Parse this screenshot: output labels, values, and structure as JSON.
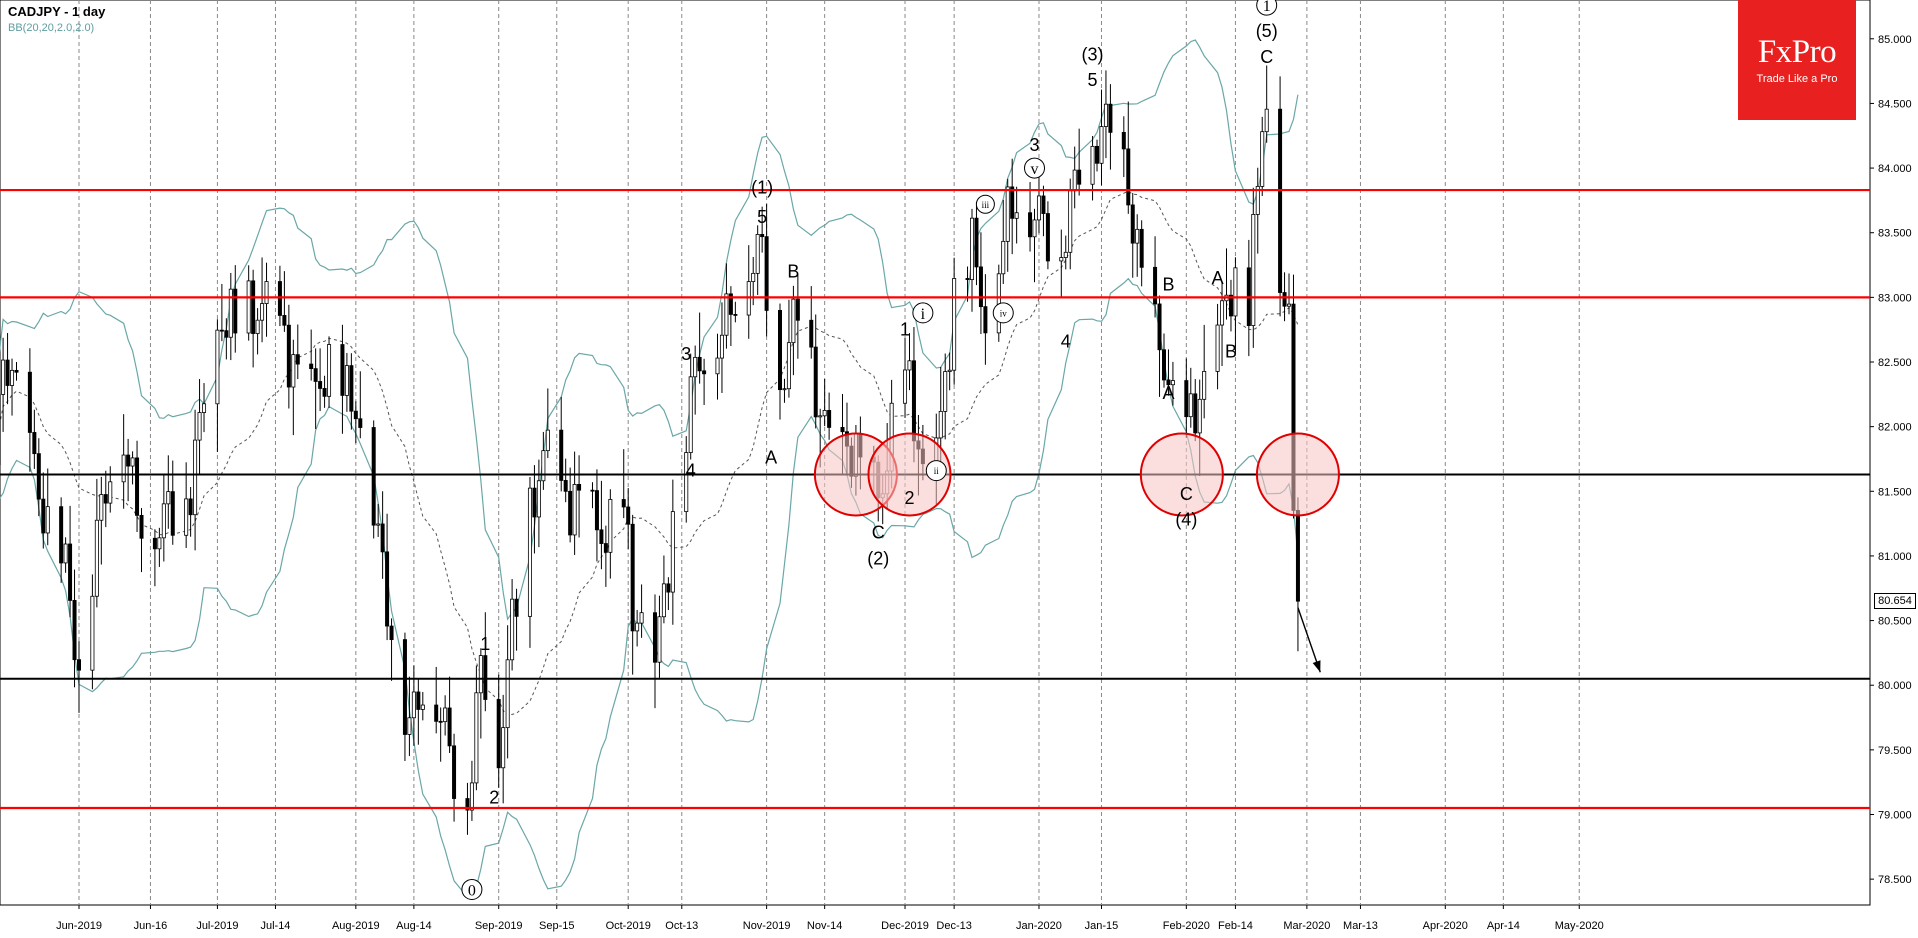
{
  "header": {
    "title": "CADJPY - 1 day",
    "indicator": "BB(20,20,2.0,2.0)"
  },
  "logo": {
    "name": "FxPro",
    "tagline": "Trade Like a Pro"
  },
  "current_price": "80.654",
  "colors": {
    "resistance": "#ff0000",
    "support": "#000000",
    "bollinger": "#6aa7a7",
    "bollinger_mid": "#555555",
    "bull_marker": "#1a9a1a",
    "bear_marker": "#c01010",
    "highlight_fill": "#f7c4c4",
    "highlight_stroke": "#e00000"
  },
  "chart_data": {
    "type": "candlestick",
    "symbol": "CADJPY",
    "timeframe": "1 day",
    "ylim": [
      78.3,
      85.3
    ],
    "y_ticks": [
      "78.500",
      "79.000",
      "79.500",
      "80.000",
      "80.500",
      "81.000",
      "81.500",
      "82.000",
      "82.500",
      "83.000",
      "83.500",
      "84.000",
      "84.500",
      "85.000"
    ],
    "x_labels": [
      {
        "date": "2019-05-31",
        "label": "Jun-2019"
      },
      {
        "date": "2019-06-16",
        "label": "Jun-16"
      },
      {
        "date": "2019-07-01",
        "label": "Jul-2019"
      },
      {
        "date": "2019-07-14",
        "label": "Jul-14"
      },
      {
        "date": "2019-08-01",
        "label": "Aug-2019"
      },
      {
        "date": "2019-08-14",
        "label": "Aug-14"
      },
      {
        "date": "2019-09-02",
        "label": "Sep-2019"
      },
      {
        "date": "2019-09-15",
        "label": "Sep-15"
      },
      {
        "date": "2019-10-01",
        "label": "Oct-2019"
      },
      {
        "date": "2019-10-13",
        "label": "Oct-13"
      },
      {
        "date": "2019-11-01",
        "label": "Nov-2019"
      },
      {
        "date": "2019-11-14",
        "label": "Nov-14"
      },
      {
        "date": "2019-12-02",
        "label": "Dec-2019"
      },
      {
        "date": "2019-12-13",
        "label": "Dec-13"
      },
      {
        "date": "2020-01-01",
        "label": "Jan-2020"
      },
      {
        "date": "2020-01-15",
        "label": "Jan-15"
      },
      {
        "date": "2020-02-03",
        "label": "Feb-2020"
      },
      {
        "date": "2020-02-14",
        "label": "Feb-14"
      },
      {
        "date": "2020-03-01",
        "label": "Mar-2020"
      },
      {
        "date": "2020-03-13",
        "label": "Mar-13"
      },
      {
        "date": "2020-04-01",
        "label": "Apr-2020"
      },
      {
        "date": "2020-04-14",
        "label": "Apr-14"
      },
      {
        "date": "2020-05-01",
        "label": "May-2020"
      }
    ],
    "close_path": [
      [
        "2019-05-10",
        81.6
      ],
      [
        "2019-05-15",
        82.4
      ],
      [
        "2019-05-20",
        82.0
      ],
      [
        "2019-05-24",
        81.2
      ],
      [
        "2019-05-28",
        80.8
      ],
      [
        "2019-05-31",
        80.2
      ],
      [
        "2019-06-04",
        81.2
      ],
      [
        "2019-06-10",
        81.9
      ],
      [
        "2019-06-14",
        81.4
      ],
      [
        "2019-06-18",
        81.1
      ],
      [
        "2019-06-24",
        81.5
      ],
      [
        "2019-06-27",
        82.1
      ],
      [
        "2019-07-02",
        82.7
      ],
      [
        "2019-07-08",
        83.0
      ],
      [
        "2019-07-12",
        82.8
      ],
      [
        "2019-07-18",
        82.6
      ],
      [
        "2019-07-23",
        82.2
      ],
      [
        "2019-07-29",
        82.4
      ],
      [
        "2019-08-01",
        82.3
      ],
      [
        "2019-08-05",
        81.2
      ],
      [
        "2019-08-09",
        80.4
      ],
      [
        "2019-08-13",
        79.8
      ],
      [
        "2019-08-16",
        79.9
      ],
      [
        "2019-08-21",
        79.7
      ],
      [
        "2019-08-26",
        79.1
      ],
      [
        "2019-08-29",
        80.0
      ],
      [
        "2019-09-02",
        79.4
      ],
      [
        "2019-09-04",
        80.4
      ],
      [
        "2019-09-09",
        81.2
      ],
      [
        "2019-09-13",
        81.8
      ],
      [
        "2019-09-18",
        81.5
      ],
      [
        "2019-09-24",
        81.1
      ],
      [
        "2019-09-30",
        81.5
      ],
      [
        "2019-10-02",
        80.5
      ],
      [
        "2019-10-07",
        80.2
      ],
      [
        "2019-10-11",
        81.4
      ],
      [
        "2019-10-16",
        82.3
      ],
      [
        "2019-10-22",
        82.9
      ],
      [
        "2019-10-28",
        83.1
      ],
      [
        "2019-10-31",
        83.4
      ],
      [
        "2019-11-04",
        82.4
      ],
      [
        "2019-11-08",
        82.8
      ],
      [
        "2019-11-12",
        82.3
      ],
      [
        "2019-11-18",
        81.8
      ],
      [
        "2019-11-22",
        81.6
      ],
      [
        "2019-11-26",
        81.6
      ],
      [
        "2019-12-02",
        82.3
      ],
      [
        "2019-12-06",
        81.7
      ],
      [
        "2019-12-10",
        82.1
      ],
      [
        "2019-12-13",
        82.9
      ],
      [
        "2019-12-17",
        83.4
      ],
      [
        "2019-12-20",
        83.0
      ],
      [
        "2019-12-26",
        83.6
      ],
      [
        "2020-01-01",
        83.8
      ],
      [
        "2020-01-06",
        83.2
      ],
      [
        "2020-01-10",
        84.0
      ],
      [
        "2020-01-15",
        84.4
      ],
      [
        "2020-01-20",
        83.9
      ],
      [
        "2020-01-24",
        83.3
      ],
      [
        "2020-01-28",
        82.6
      ],
      [
        "2020-02-01",
        81.8
      ],
      [
        "2020-02-05",
        82.3
      ],
      [
        "2020-02-10",
        82.6
      ],
      [
        "2020-02-13",
        83.0
      ],
      [
        "2020-02-17",
        83.1
      ],
      [
        "2020-02-20",
        84.4
      ],
      [
        "2020-02-22",
        84.6
      ],
      [
        "2020-02-24",
        83.0
      ],
      [
        "2020-02-26",
        82.7
      ],
      [
        "2020-02-27",
        81.6
      ],
      [
        "2020-02-28",
        80.65
      ]
    ],
    "resistance_levels": [
      83.83,
      83.0,
      79.05
    ],
    "support_levels": [
      81.63,
      80.05
    ],
    "highlight_circles": [
      {
        "date": "2019-11-21",
        "price": 81.63
      },
      {
        "date": "2019-12-03",
        "price": 81.63
      },
      {
        "date": "2020-02-02",
        "price": 81.63
      },
      {
        "date": "2020-02-28",
        "price": 81.63
      }
    ],
    "projection_arrow": {
      "from": [
        "2020-02-28",
        80.6
      ],
      "to": [
        "2020-03-04",
        80.1
      ]
    },
    "wave_labels": [
      {
        "text": "0",
        "circled": true,
        "date": "2019-08-27",
        "price": 78.42
      },
      {
        "text": "1",
        "date": "2019-08-30",
        "price": 80.32
      },
      {
        "text": "2",
        "date": "2019-09-01",
        "price": 79.13
      },
      {
        "text": "3",
        "date": "2019-10-14",
        "price": 82.56
      },
      {
        "text": "4",
        "date": "2019-10-15",
        "price": 81.66
      },
      {
        "text": "(1)",
        "date": "2019-10-31",
        "price": 83.85
      },
      {
        "text": "5",
        "date": "2019-10-31",
        "price": 83.62
      },
      {
        "text": "A",
        "date": "2019-11-02",
        "price": 81.76
      },
      {
        "text": "B",
        "date": "2019-11-07",
        "price": 83.2
      },
      {
        "text": "C",
        "date": "2019-11-26",
        "price": 81.18
      },
      {
        "text": "(2)",
        "date": "2019-11-26",
        "price": 80.98
      },
      {
        "text": "1",
        "date": "2019-12-02",
        "price": 82.75
      },
      {
        "text": "2",
        "date": "2019-12-03",
        "price": 81.45
      },
      {
        "text": "i",
        "circled": true,
        "date": "2019-12-06",
        "price": 82.88
      },
      {
        "text": "ii",
        "circled": true,
        "date": "2019-12-09",
        "price": 81.66
      },
      {
        "text": "iii",
        "circled": true,
        "date": "2019-12-20",
        "price": 83.72
      },
      {
        "text": "iv",
        "circled": true,
        "date": "2019-12-24",
        "price": 82.88
      },
      {
        "text": "v",
        "circled": true,
        "date": "2019-12-31",
        "price": 84.0
      },
      {
        "text": "3",
        "date": "2019-12-31",
        "price": 84.18
      },
      {
        "text": "4",
        "date": "2020-01-07",
        "price": 82.66
      },
      {
        "text": "(3)",
        "date": "2020-01-13",
        "price": 84.88
      },
      {
        "text": "5",
        "date": "2020-01-13",
        "price": 84.68
      },
      {
        "text": "A",
        "date": "2020-01-30",
        "price": 82.26
      },
      {
        "text": "B",
        "date": "2020-01-30",
        "price": 83.1
      },
      {
        "text": "C",
        "date": "2020-02-03",
        "price": 81.48
      },
      {
        "text": "(4)",
        "date": "2020-02-03",
        "price": 81.28
      },
      {
        "text": "A",
        "date": "2020-02-10",
        "price": 83.15
      },
      {
        "text": "B",
        "date": "2020-02-13",
        "price": 82.58
      },
      {
        "text": "1",
        "circled": true,
        "date": "2020-02-21",
        "price": 85.26
      },
      {
        "text": "(5)",
        "date": "2020-02-21",
        "price": 85.06
      },
      {
        "text": "C",
        "date": "2020-02-21",
        "price": 84.86
      }
    ]
  }
}
